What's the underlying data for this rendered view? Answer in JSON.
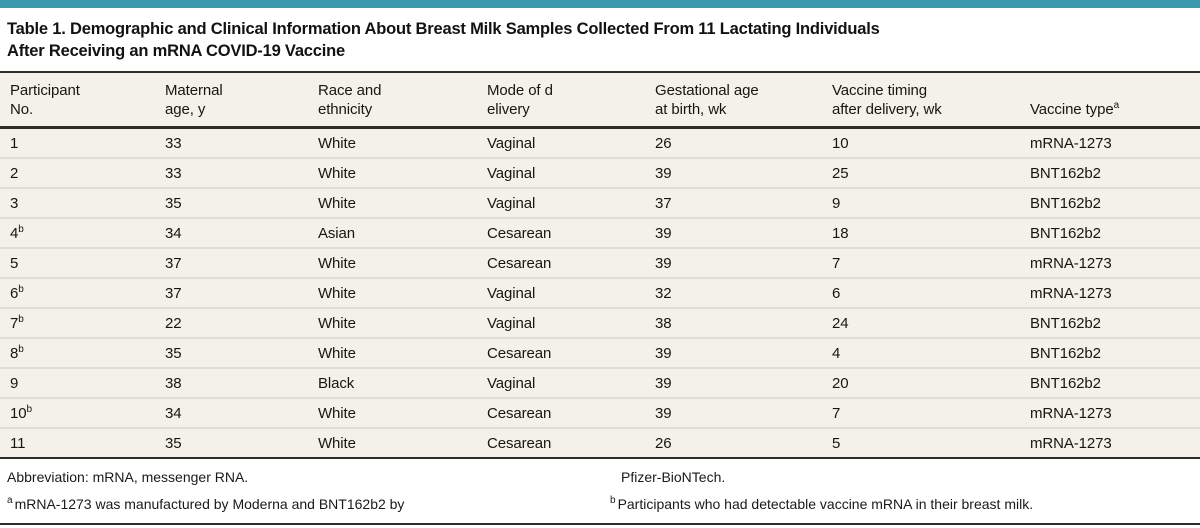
{
  "colors": {
    "accent": "#3a99ae",
    "table_background": "#f3f1e8",
    "rule": "#2e2d2a",
    "row_divider": "#e0ded4",
    "text": "#161613"
  },
  "title": {
    "line1": "Table 1. Demographic and Clinical Information About Breast Milk Samples Collected From 11 Lactating Individuals",
    "line2": "After Receiving an mRNA COVID-19 Vaccine"
  },
  "table": {
    "headers": [
      {
        "key": "participant-no",
        "line1": "Participant",
        "line2": "No.",
        "sup": ""
      },
      {
        "key": "maternal-age",
        "line1": "Maternal",
        "line2": "age, y",
        "sup": ""
      },
      {
        "key": "race-ethnicity",
        "line1": "Race and",
        "line2": "ethnicity",
        "sup": ""
      },
      {
        "key": "mode-of-delivery",
        "line1": "Mode of d",
        "line2": "elivery",
        "sup": ""
      },
      {
        "key": "gestational-age",
        "line1": "Gestational age",
        "line2": "at birth, wk",
        "sup": ""
      },
      {
        "key": "vaccine-timing",
        "line1": "Vaccine timing",
        "line2": "after delivery, wk",
        "sup": ""
      },
      {
        "key": "vaccine-type",
        "line1": "",
        "line2": "Vaccine type",
        "sup": "a"
      }
    ],
    "rows": [
      {
        "no": "1",
        "sup": "",
        "values": [
          "33",
          "White",
          "Vaginal",
          "26",
          "10",
          "mRNA-1273"
        ]
      },
      {
        "no": "2",
        "sup": "",
        "values": [
          "33",
          "White",
          "Vaginal",
          "39",
          "25",
          "BNT162b2"
        ]
      },
      {
        "no": "3",
        "sup": "",
        "values": [
          "35",
          "White",
          "Vaginal",
          "37",
          "9",
          "BNT162b2"
        ]
      },
      {
        "no": "4",
        "sup": "b",
        "values": [
          "34",
          "Asian",
          "Cesarean",
          "39",
          "18",
          "BNT162b2"
        ]
      },
      {
        "no": "5",
        "sup": "",
        "values": [
          "37",
          "White",
          "Cesarean",
          "39",
          "7",
          "mRNA-1273"
        ]
      },
      {
        "no": "6",
        "sup": "b",
        "values": [
          "37",
          "White",
          "Vaginal",
          "32",
          "6",
          "mRNA-1273"
        ]
      },
      {
        "no": "7",
        "sup": "b",
        "values": [
          "22",
          "White",
          "Vaginal",
          "38",
          "24",
          "BNT162b2"
        ]
      },
      {
        "no": "8",
        "sup": "b",
        "values": [
          "35",
          "White",
          "Cesarean",
          "39",
          "4",
          "BNT162b2"
        ]
      },
      {
        "no": "9",
        "sup": "",
        "values": [
          "38",
          "Black",
          "Vaginal",
          "39",
          "20",
          "BNT162b2"
        ]
      },
      {
        "no": "10",
        "sup": "b",
        "values": [
          "34",
          "White",
          "Cesarean",
          "39",
          "7",
          "mRNA-1273"
        ]
      },
      {
        "no": "11",
        "sup": "",
        "values": [
          "35",
          "White",
          "Cesarean",
          "26",
          "5",
          "mRNA-1273"
        ]
      }
    ]
  },
  "footnotes": {
    "abbreviation": "Abbreviation: mRNA, messenger RNA.",
    "a_marker": "a",
    "a_text": "mRNA-1273 was manufactured by Moderna and BNT162b2 by",
    "a_continuation": "Pfizer-BioNTech.",
    "b_marker": "b",
    "b_text": "Participants who had detectable vaccine mRNA in their breast milk."
  }
}
